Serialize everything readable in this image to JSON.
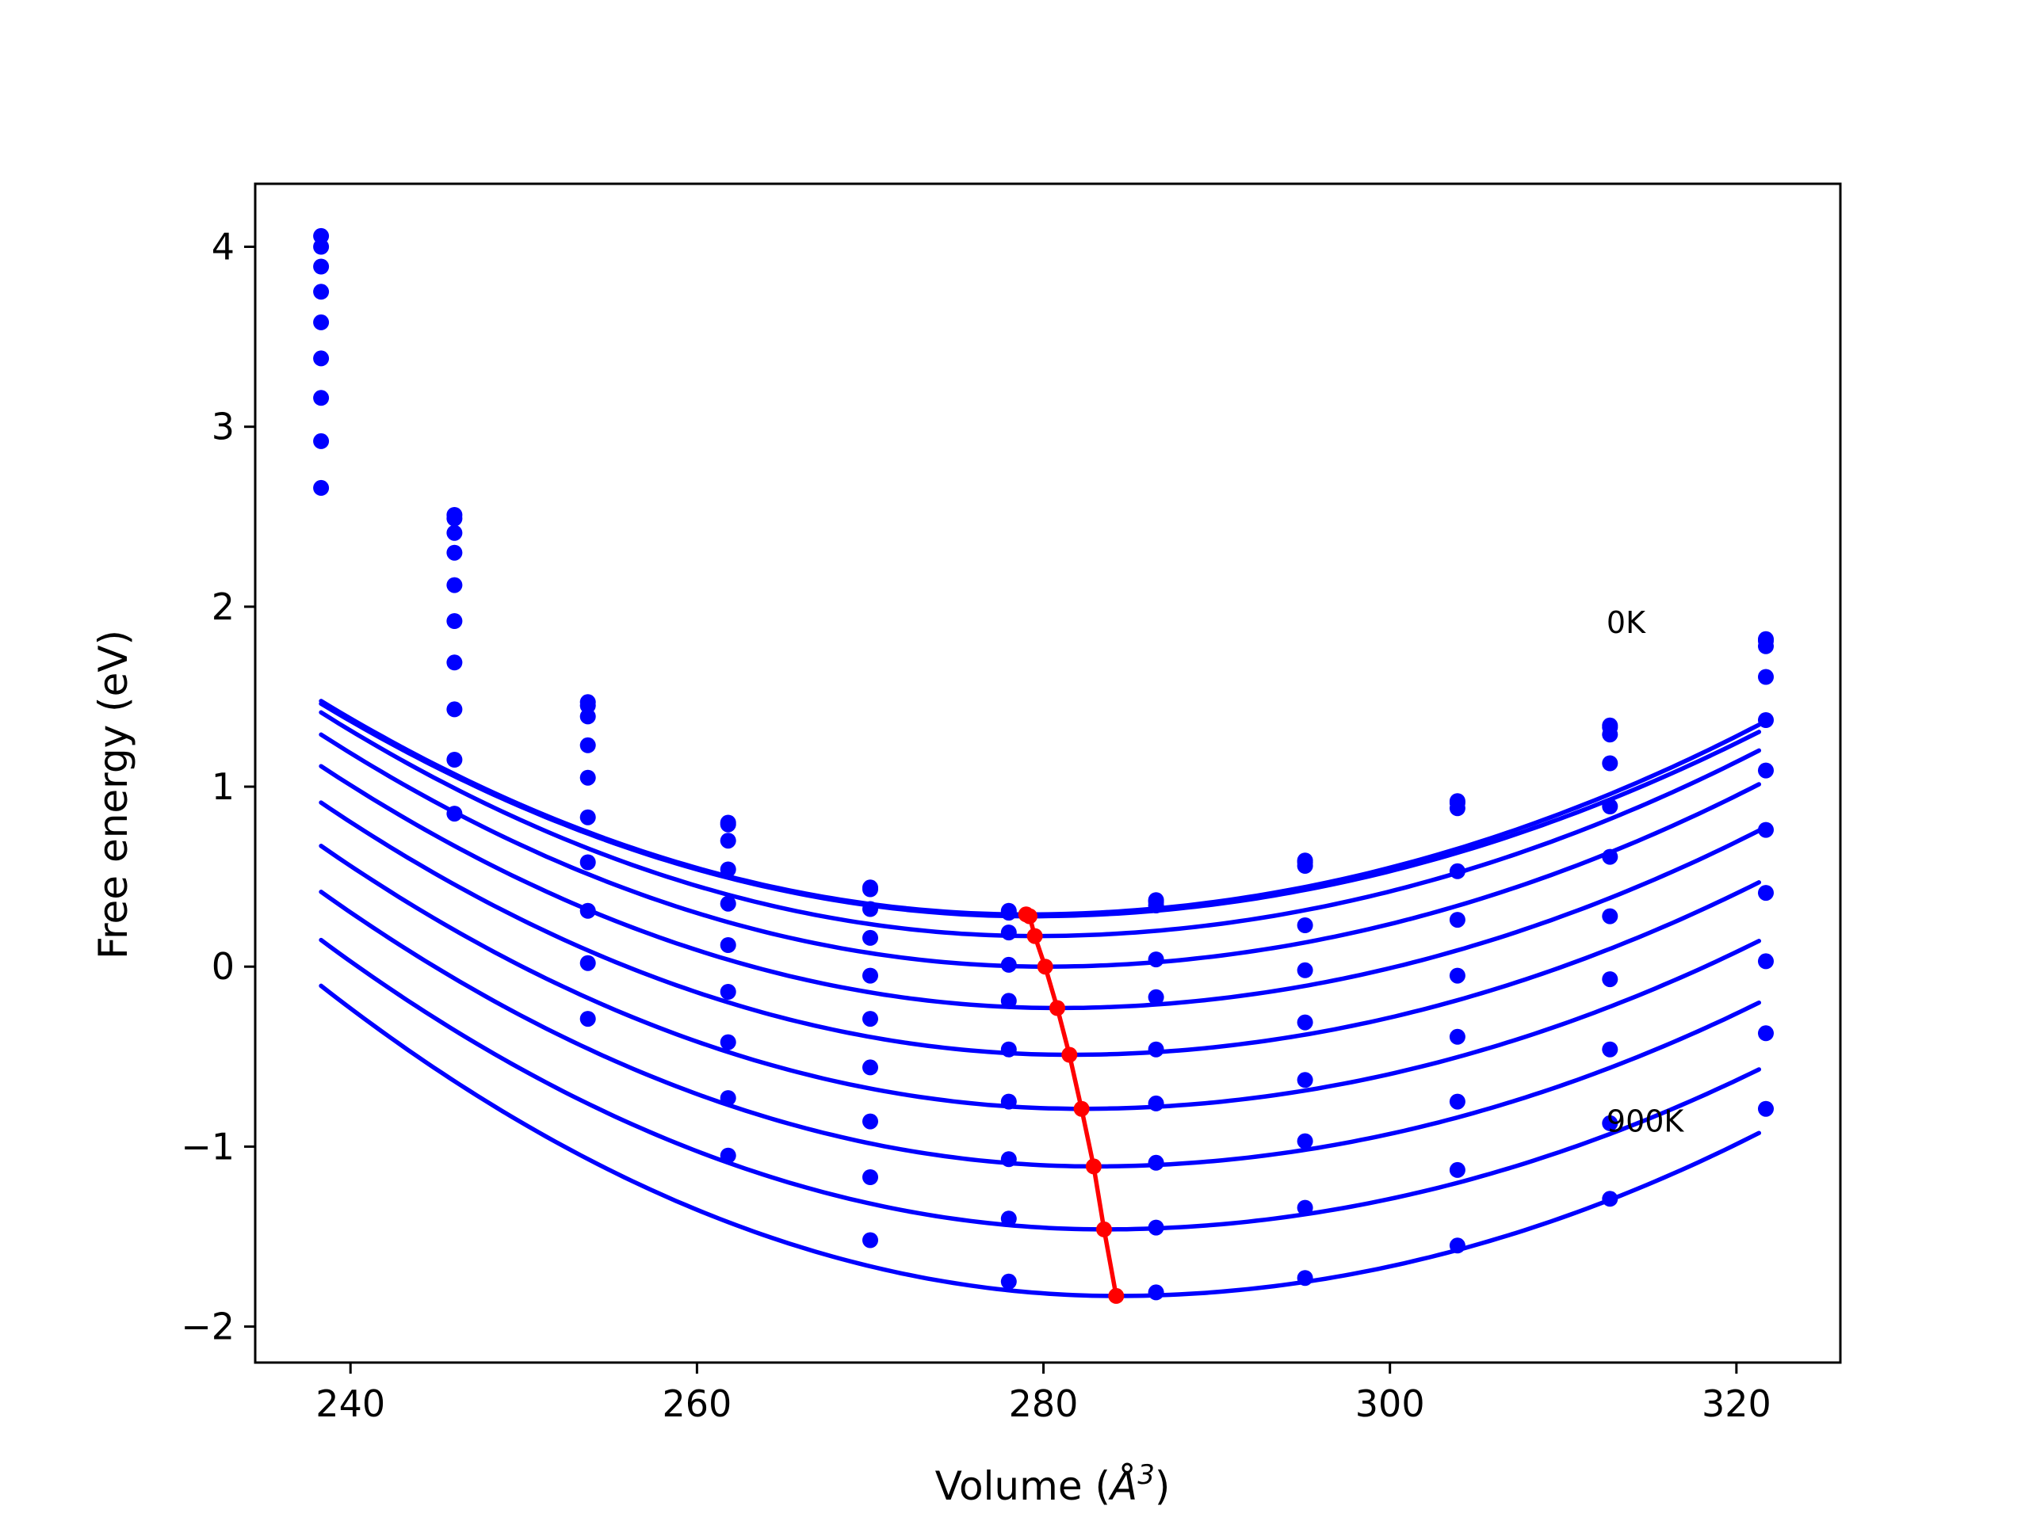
{
  "chart_data": {
    "type": "line",
    "title": "",
    "xlabel_prefix": "Volume (",
    "xlabel_symbol": "Å",
    "xlabel_power": "3",
    "xlabel_suffix": ")",
    "ylabel": "Free energy (eV)",
    "xlim": [
      234.5,
      326
    ],
    "ylim": [
      -2.2,
      4.35
    ],
    "x_ticks": [
      240,
      260,
      280,
      300,
      320
    ],
    "y_ticks": [
      -2,
      -1,
      0,
      1,
      2,
      3,
      4
    ],
    "grid": false,
    "legend": "none",
    "colors": {
      "series": "#0000ff",
      "minima": "#ff0000",
      "frame": "#000000"
    },
    "annotations": [
      {
        "text": "0K",
        "x": 312.5,
        "y": 1.9
      },
      {
        "text": "900K",
        "x": 312.5,
        "y": -0.87
      }
    ],
    "x": [
      238.3,
      246.0,
      253.7,
      261.8,
      270.0,
      278.0,
      286.5,
      295.1,
      303.9,
      312.7,
      321.7
    ],
    "series": [
      {
        "values": [
          4.06,
          2.51,
          1.47,
          0.8,
          0.44,
          0.31,
          0.37,
          0.59,
          0.92,
          1.34,
          1.82
        ]
      },
      {
        "values": [
          4.0,
          2.49,
          1.45,
          0.79,
          0.43,
          0.3,
          0.36,
          0.58,
          0.91,
          1.33,
          1.81
        ]
      },
      {
        "values": [
          3.89,
          2.41,
          1.39,
          0.7,
          0.32,
          0.19,
          0.34,
          0.56,
          0.88,
          1.29,
          1.78
        ]
      },
      {
        "values": [
          3.75,
          2.3,
          1.23,
          0.54,
          0.16,
          0.01,
          0.04,
          0.23,
          0.53,
          1.13,
          1.61
        ]
      },
      {
        "values": [
          3.58,
          2.12,
          1.05,
          0.35,
          -0.05,
          -0.19,
          -0.17,
          -0.02,
          0.26,
          0.89,
          1.37
        ]
      },
      {
        "values": [
          3.38,
          1.92,
          0.83,
          0.12,
          -0.29,
          -0.46,
          -0.46,
          -0.31,
          -0.05,
          0.61,
          1.09
        ]
      },
      {
        "values": [
          3.16,
          1.69,
          0.58,
          -0.14,
          -0.56,
          -0.75,
          -0.76,
          -0.63,
          -0.39,
          0.28,
          0.76
        ]
      },
      {
        "values": [
          2.92,
          1.43,
          0.31,
          -0.42,
          -0.86,
          -1.07,
          -1.09,
          -0.97,
          -0.75,
          -0.07,
          0.41
        ]
      },
      {
        "values": [
          2.66,
          1.15,
          0.02,
          -0.73,
          -1.17,
          -1.4,
          -1.45,
          -1.34,
          -1.13,
          -0.46,
          0.03
        ]
      },
      {
        "values": [
          null,
          0.85,
          -0.29,
          -1.05,
          -1.52,
          -1.75,
          -1.81,
          -1.73,
          -1.55,
          -0.87,
          -0.37
        ]
      },
      {
        "values": [
          null,
          null,
          null,
          null,
          null,
          null,
          null,
          null,
          null,
          -1.29,
          -0.79
        ]
      }
    ],
    "fitted_curves": [
      {
        "vmin": 279.0,
        "emin": 0.29,
        "curvature_left": 0.000716,
        "curvature_right": 0.000589
      },
      {
        "vmin": 279.2,
        "emin": 0.28,
        "curvature_left": 0.000706,
        "curvature_right": 0.000578
      },
      {
        "vmin": 279.5,
        "emin": 0.17,
        "curvature_left": 0.000732,
        "curvature_right": 0.00059
      },
      {
        "vmin": 280.1,
        "emin": 0.0,
        "curvature_left": 0.000738,
        "curvature_right": 0.000597
      },
      {
        "vmin": 280.8,
        "emin": -0.23,
        "curvature_left": 0.000744,
        "curvature_right": 0.000601
      },
      {
        "vmin": 281.5,
        "emin": -0.49,
        "curvature_left": 0.000751,
        "curvature_right": 0.000605
      },
      {
        "vmin": 282.2,
        "emin": -0.79,
        "curvature_left": 0.000758,
        "curvature_right": 0.00061
      },
      {
        "vmin": 282.9,
        "emin": -1.11,
        "curvature_left": 0.000767,
        "curvature_right": 0.000617
      },
      {
        "vmin": 283.5,
        "emin": -1.46,
        "curvature_left": 0.000787,
        "curvature_right": 0.000622
      },
      {
        "vmin": 284.2,
        "emin": -1.83,
        "curvature_left": 0.000818,
        "curvature_right": 0.000658
      }
    ],
    "minima_path": [
      {
        "x": 279.0,
        "y": 0.29
      },
      {
        "x": 279.2,
        "y": 0.28
      },
      {
        "x": 279.5,
        "y": 0.17
      },
      {
        "x": 280.1,
        "y": 0.0
      },
      {
        "x": 280.8,
        "y": -0.23
      },
      {
        "x": 281.5,
        "y": -0.49
      },
      {
        "x": 282.2,
        "y": -0.79
      },
      {
        "x": 282.9,
        "y": -1.11
      },
      {
        "x": 283.5,
        "y": -1.46
      },
      {
        "x": 284.2,
        "y": -1.83
      }
    ]
  }
}
